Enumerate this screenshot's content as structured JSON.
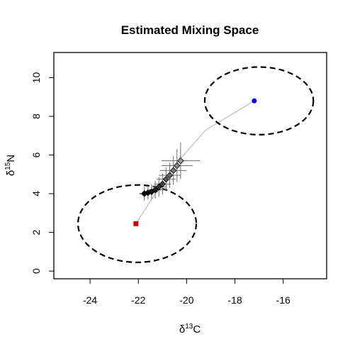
{
  "chart_data": {
    "type": "scatter",
    "title": "Estimated Mixing Space",
    "xlabel": {
      "base": "δ",
      "sup": "13",
      "tail": "C"
    },
    "ylabel": {
      "base": "δ",
      "sup": "15",
      "tail": "N"
    },
    "xlim": [
      -25.5,
      -14.2
    ],
    "ylim": [
      -0.4,
      11.3
    ],
    "x_ticks": [
      -24,
      -22,
      -20,
      -18,
      -16
    ],
    "x_tick_labels": [
      "-24",
      "-22",
      "-20",
      "-18",
      "-16"
    ],
    "y_ticks": [
      0,
      2,
      4,
      6,
      8,
      10
    ],
    "y_tick_labels": [
      "0",
      "2",
      "4",
      "6",
      "8",
      "10"
    ],
    "grid": false,
    "sources": [
      {
        "color": "#cc0000",
        "marker": "square",
        "x": -22.1,
        "y": 2.45,
        "ellipse": {
          "cx": -22.05,
          "cy": 2.45,
          "rx": 2.45,
          "ry": 2.0
        }
      },
      {
        "color": "#0000ff",
        "marker": "circle",
        "x": -17.2,
        "y": 8.8,
        "ellipse": {
          "cx": -17.0,
          "cy": 8.8,
          "rx": 2.25,
          "ry": 1.75
        }
      }
    ],
    "mixing_line": [
      [
        -22.1,
        2.45
      ],
      [
        -21.4,
        3.8
      ],
      [
        -20.3,
        5.75
      ],
      [
        -19.2,
        7.3
      ],
      [
        -17.2,
        8.8
      ]
    ],
    "consumers": [
      {
        "x": -21.75,
        "y": 4.0,
        "fill": "#000000",
        "xerr": 0.2,
        "yerr": 0.35
      },
      {
        "x": -21.6,
        "y": 4.05,
        "fill": "#000000",
        "xerr": 0.2,
        "yerr": 0.35
      },
      {
        "x": -21.45,
        "y": 4.1,
        "fill": "#111111",
        "xerr": 0.25,
        "yerr": 0.4
      },
      {
        "x": -21.3,
        "y": 4.2,
        "fill": "#222222",
        "xerr": 0.25,
        "yerr": 0.45
      },
      {
        "x": -21.15,
        "y": 4.35,
        "fill": "#333333",
        "xerr": 0.3,
        "yerr": 0.5
      },
      {
        "x": -21.0,
        "y": 4.5,
        "fill": "#444444",
        "xerr": 0.35,
        "yerr": 0.55
      },
      {
        "x": -20.85,
        "y": 4.75,
        "fill": "#555555",
        "xerr": 0.4,
        "yerr": 0.6
      },
      {
        "x": -20.7,
        "y": 4.95,
        "fill": "#666666",
        "xerr": 0.45,
        "yerr": 0.65
      },
      {
        "x": -20.55,
        "y": 5.2,
        "fill": "#777777",
        "xerr": 0.55,
        "yerr": 0.75
      },
      {
        "x": -20.4,
        "y": 5.45,
        "fill": "#888888",
        "xerr": 0.65,
        "yerr": 0.85
      },
      {
        "x": -20.25,
        "y": 5.7,
        "fill": "#999999",
        "xerr": 0.8,
        "yerr": 0.95
      }
    ],
    "error_bar_color": "#6e6e6e",
    "ellipse_style": "dashed",
    "mixing_line_color": "#b0b0b0"
  }
}
